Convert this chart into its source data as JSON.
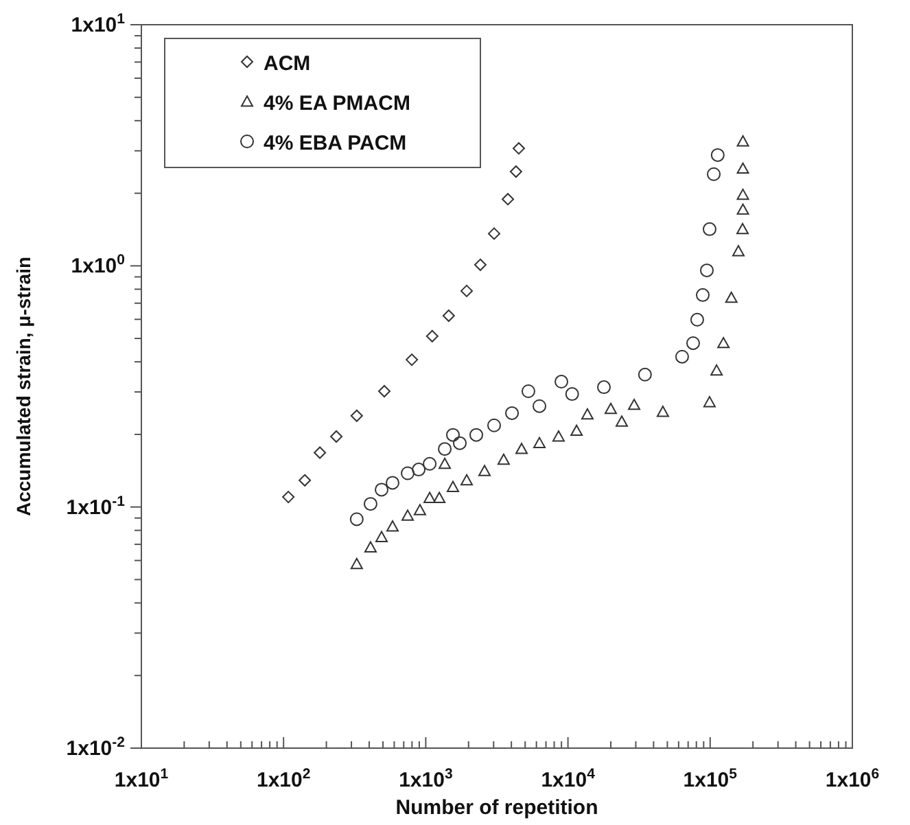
{
  "chart_data": {
    "type": "scatter",
    "xlabel": "Number of repetition",
    "ylabel": "Accumulated strain, μ-strain",
    "log": "xy",
    "legend": "top left",
    "grid": false,
    "xlim": [
      10,
      1000000
    ],
    "ylim": [
      0.01,
      10
    ],
    "xticks": [
      {
        "value": 10,
        "label": "1x10$^{1}$"
      },
      {
        "value": 100,
        "label": "1x10$^{2}$"
      },
      {
        "value": 1000,
        "label": "1x10$^{3}$"
      },
      {
        "value": 10000,
        "label": "1x10$^{4}$"
      },
      {
        "value": 100000,
        "label": "1x10$^{5}$"
      },
      {
        "value": 1000000,
        "label": "1x10$^{6}$"
      },
      {
        "value": 20,
        "label": null
      },
      {
        "value": 30,
        "label": null
      },
      {
        "value": 40,
        "label": null
      },
      {
        "value": 50,
        "label": null
      },
      {
        "value": 60,
        "label": null
      },
      {
        "value": 70,
        "label": null
      },
      {
        "value": 80,
        "label": null
      },
      {
        "value": 90,
        "label": null
      },
      {
        "value": 200,
        "label": null
      },
      {
        "value": 300,
        "label": null
      },
      {
        "value": 400,
        "label": null
      },
      {
        "value": 500,
        "label": null
      },
      {
        "value": 600,
        "label": null
      },
      {
        "value": 700,
        "label": null
      },
      {
        "value": 800,
        "label": null
      },
      {
        "value": 900,
        "label": null
      },
      {
        "value": 2000,
        "label": null
      },
      {
        "value": 3000,
        "label": null
      },
      {
        "value": 4000,
        "label": null
      },
      {
        "value": 5000,
        "label": null
      },
      {
        "value": 6000,
        "label": null
      },
      {
        "value": 7000,
        "label": null
      },
      {
        "value": 8000,
        "label": null
      },
      {
        "value": 9000,
        "label": null
      },
      {
        "value": 20000,
        "label": null
      },
      {
        "value": 30000,
        "label": null
      },
      {
        "value": 40000,
        "label": null
      },
      {
        "value": 50000,
        "label": null
      },
      {
        "value": 60000,
        "label": null
      },
      {
        "value": 70000,
        "label": null
      },
      {
        "value": 80000,
        "label": null
      },
      {
        "value": 90000,
        "label": null
      },
      {
        "value": 200000,
        "label": null
      },
      {
        "value": 300000,
        "label": null
      },
      {
        "value": 400000,
        "label": null
      },
      {
        "value": 500000,
        "label": null
      },
      {
        "value": 600000,
        "label": null
      },
      {
        "value": 700000,
        "label": null
      },
      {
        "value": 800000,
        "label": null
      },
      {
        "value": 900000,
        "label": null
      }
    ],
    "yticks": [
      {
        "value": 0.01,
        "label": "1x10$^{-2}$"
      },
      {
        "value": 0.1,
        "label": "1x10$^{-1}$"
      },
      {
        "value": 1,
        "label": "1x10$^{0}$"
      },
      {
        "value": 10,
        "label": "1x10$^{1}$"
      },
      {
        "value": 0.02,
        "label": null
      },
      {
        "value": 0.03,
        "label": null
      },
      {
        "value": 0.04,
        "label": null
      },
      {
        "value": 0.05,
        "label": null
      },
      {
        "value": 0.06,
        "label": null
      },
      {
        "value": 0.07,
        "label": null
      },
      {
        "value": 0.08,
        "label": null
      },
      {
        "value": 0.09,
        "label": null
      },
      {
        "value": 0.2,
        "label": null
      },
      {
        "value": 0.3,
        "label": null
      },
      {
        "value": 0.4,
        "label": null
      },
      {
        "value": 0.5,
        "label": null
      },
      {
        "value": 0.6,
        "label": null
      },
      {
        "value": 0.7,
        "label": null
      },
      {
        "value": 0.8,
        "label": null
      },
      {
        "value": 0.9,
        "label": null
      },
      {
        "value": 2,
        "label": null
      },
      {
        "value": 3,
        "label": null
      },
      {
        "value": 4,
        "label": null
      },
      {
        "value": 5,
        "label": null
      },
      {
        "value": 6,
        "label": null
      },
      {
        "value": 7,
        "label": null
      },
      {
        "value": 8,
        "label": null
      },
      {
        "value": 9,
        "label": null
      }
    ],
    "series": [
      {
        "name": "ACM",
        "color": "#333333",
        "marker": "diamond",
        "x": [
          108,
          141,
          180,
          235,
          327,
          511,
          798,
          1110,
          1450,
          1940,
          2420,
          3025,
          3780,
          4310,
          4510
        ],
        "values": [
          0.11,
          0.129,
          0.168,
          0.196,
          0.239,
          0.302,
          0.408,
          0.511,
          0.621,
          0.787,
          1.01,
          1.36,
          1.89,
          2.46,
          3.07
        ]
      },
      {
        "name": "4% EA PMACM",
        "color": "#333333",
        "marker": "triangle",
        "x": [
          327,
          409,
          489,
          584,
          746,
          910,
          1065,
          1245,
          1360,
          1553,
          1940,
          2590,
          3530,
          4720,
          6300,
          8590,
          11500,
          13700,
          20000,
          23900,
          29200,
          46500,
          99000,
          111000,
          124000,
          141000,
          158000,
          169000,
          170000,
          170000,
          170000,
          170000
        ],
        "values": [
          0.058,
          0.068,
          0.075,
          0.083,
          0.092,
          0.097,
          0.109,
          0.109,
          0.151,
          0.121,
          0.129,
          0.141,
          0.157,
          0.174,
          0.184,
          0.196,
          0.207,
          0.242,
          0.255,
          0.226,
          0.265,
          0.248,
          0.272,
          0.368,
          0.478,
          0.737,
          1.15,
          1.42,
          1.71,
          1.97,
          2.53,
          3.28
        ]
      },
      {
        "name": "4% EBA PACM",
        "color": "#333333",
        "marker": "circle",
        "x": [
          327,
          409,
          489,
          584,
          746,
          892,
          1065,
          1360,
          1553,
          1735,
          2266,
          3025,
          4040,
          5270,
          6300,
          8990,
          10700,
          17900,
          34800,
          63500,
          75900,
          81100,
          88700,
          94800,
          99100,
          106000,
          113000
        ],
        "values": [
          0.089,
          0.103,
          0.118,
          0.126,
          0.138,
          0.143,
          0.151,
          0.174,
          0.199,
          0.184,
          0.199,
          0.218,
          0.245,
          0.302,
          0.262,
          0.331,
          0.294,
          0.314,
          0.354,
          0.42,
          0.478,
          0.598,
          0.757,
          0.958,
          1.42,
          2.4,
          2.88
        ]
      }
    ]
  }
}
